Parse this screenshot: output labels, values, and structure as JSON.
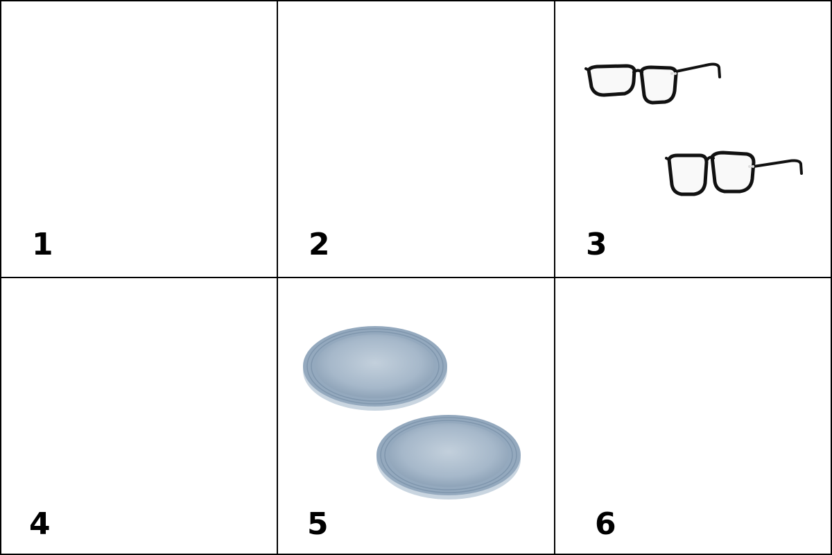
{
  "cells": [
    {
      "label": "1",
      "item": "",
      "count": 0
    },
    {
      "label": "2",
      "item": "",
      "count": 0
    },
    {
      "label": "3",
      "item": "glasses",
      "count": 2
    },
    {
      "label": "4",
      "item": "",
      "count": 0
    },
    {
      "label": "5",
      "item": "plate",
      "count": 2
    },
    {
      "label": "6",
      "item": "",
      "count": 0
    }
  ],
  "colors": {
    "border": "#000000",
    "glasses_frame": "#111111",
    "plate_rim": "#8ea3b8",
    "plate_center": "#b9c8d6"
  }
}
